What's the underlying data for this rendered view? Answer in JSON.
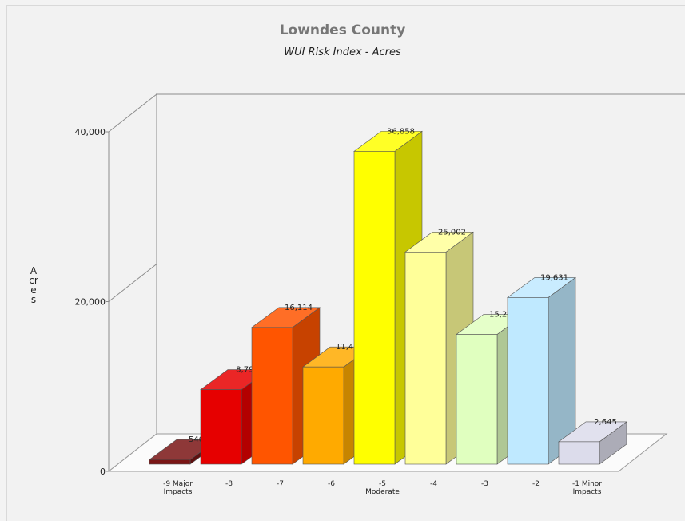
{
  "chart_data": {
    "type": "bar",
    "title": "Lowndes County",
    "subtitle": "WUI Risk Index - Acres",
    "ylabel": "Acres",
    "xlabel": "",
    "ylim": [
      0,
      40000
    ],
    "yticks": [
      "0",
      "20,000",
      "40,000"
    ],
    "grid": true,
    "legend": "none",
    "categories": [
      [
        "-9 Major",
        "Impacts"
      ],
      [
        "-8"
      ],
      [
        "-7"
      ],
      [
        "-6"
      ],
      [
        "-5",
        "Moderate"
      ],
      [
        "-4"
      ],
      [
        "-3"
      ],
      [
        "-2"
      ],
      [
        "-1 Minor",
        "Impacts"
      ]
    ],
    "values": [
      546,
      8792,
      16114,
      11463,
      36858,
      25002,
      15292,
      19631,
      2645
    ],
    "value_labels": [
      "546",
      "8,792",
      "16,114",
      "11,463",
      "36,858",
      "25,002",
      "15,292",
      "19,631",
      "2,645"
    ],
    "colors": [
      "#7a1515",
      "#e60000",
      "#ff5500",
      "#ffaa00",
      "#ffff00",
      "#ffff99",
      "#e0ffbf",
      "#bfe9ff",
      "#dcdceb"
    ]
  }
}
